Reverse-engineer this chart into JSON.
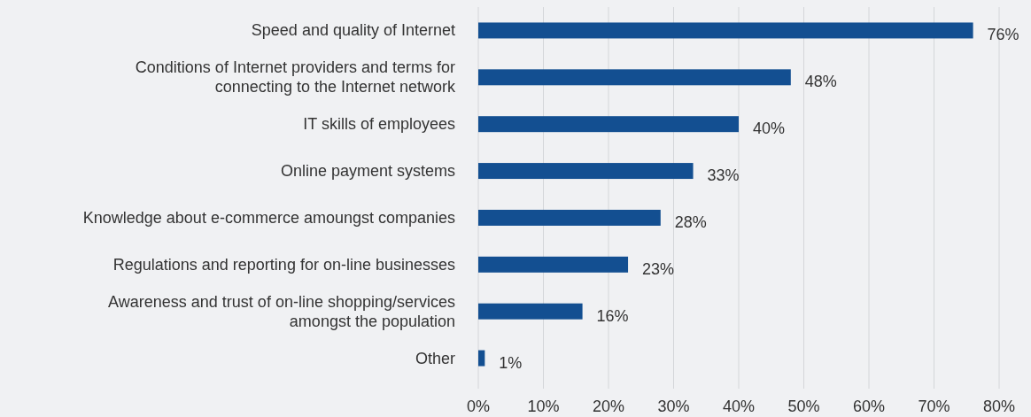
{
  "chart_data": {
    "type": "bar",
    "orientation": "horizontal",
    "categories": [
      "Speed and quality of Internet",
      "Conditions of Internet providers and terms for connecting to the Internet network",
      "IT skills of employees",
      "Online payment systems",
      "Knowledge about e-commerce amoungst companies",
      "Regulations and reporting for on-line businesses",
      "Awareness and trust of on-line shopping/services amongst the population",
      "Other"
    ],
    "values": [
      76,
      48,
      40,
      33,
      28,
      23,
      16,
      1
    ],
    "value_labels": [
      "76%",
      "48%",
      "40%",
      "33%",
      "28%",
      "23%",
      "16%",
      "1%"
    ],
    "color": "#134f91",
    "xlim": [
      0,
      80
    ],
    "xticks": [
      {
        "value": 0,
        "label": "0%"
      },
      {
        "value": 10,
        "label": "10%"
      },
      {
        "value": 20,
        "label": "20%"
      },
      {
        "value": 30,
        "label": "30%"
      },
      {
        "value": 40,
        "label": "40%"
      },
      {
        "value": 50,
        "label": "50%"
      },
      {
        "value": 60,
        "label": "60%"
      },
      {
        "value": 70,
        "label": "70%"
      },
      {
        "value": 80,
        "label": "80%"
      }
    ],
    "grid": "x"
  }
}
